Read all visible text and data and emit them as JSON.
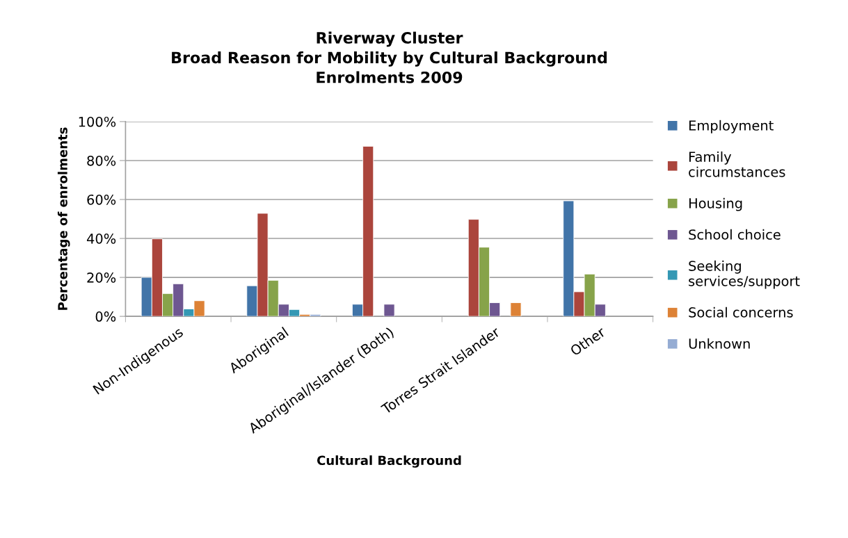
{
  "chart_data": {
    "type": "bar",
    "title": "Riverway Cluster\nBroad Reason for Mobility by Cultural Background\nEnrolments 2009",
    "xlabel": "Cultural Background",
    "ylabel": "Percentage of enrolments",
    "categories": [
      "Non-Indigenous",
      "Aboriginal",
      "Aboriginal/Islander (Both)",
      "Torres Strait Islander",
      "Other"
    ],
    "series": [
      {
        "name": "Employment",
        "color": "#4174a8",
        "values": [
          20,
          15.7,
          6.2,
          null,
          59.3
        ]
      },
      {
        "name": "Family circumstances",
        "color": "#ab453c",
        "values": [
          39.8,
          52.9,
          87.3,
          49.8,
          12.6
        ]
      },
      {
        "name": "Housing",
        "color": "#87a34a",
        "values": [
          11.7,
          18.5,
          null,
          35.5,
          21.7
        ]
      },
      {
        "name": "School choice",
        "color": "#6e5791",
        "values": [
          16.7,
          6.2,
          6.2,
          7.0,
          6.2
        ]
      },
      {
        "name": "Seeking services/support",
        "color": "#3498b4",
        "values": [
          3.8,
          3.5,
          null,
          null,
          null
        ]
      },
      {
        "name": "Social concerns",
        "color": "#dd8236",
        "values": [
          8.0,
          1.0,
          null,
          7.0,
          null
        ]
      },
      {
        "name": "Unknown",
        "color": "#95acd3",
        "values": [
          null,
          1.0,
          null,
          null,
          null
        ]
      }
    ],
    "ylim": [
      0,
      100
    ],
    "yticks": [
      {
        "value": 0,
        "label": "0%"
      },
      {
        "value": 20,
        "label": "20%"
      },
      {
        "value": 40,
        "label": "40%"
      },
      {
        "value": 60,
        "label": "60%"
      },
      {
        "value": 80,
        "label": "80%"
      },
      {
        "value": 100,
        "label": "100%"
      }
    ],
    "grid": "y",
    "legend": "right"
  }
}
